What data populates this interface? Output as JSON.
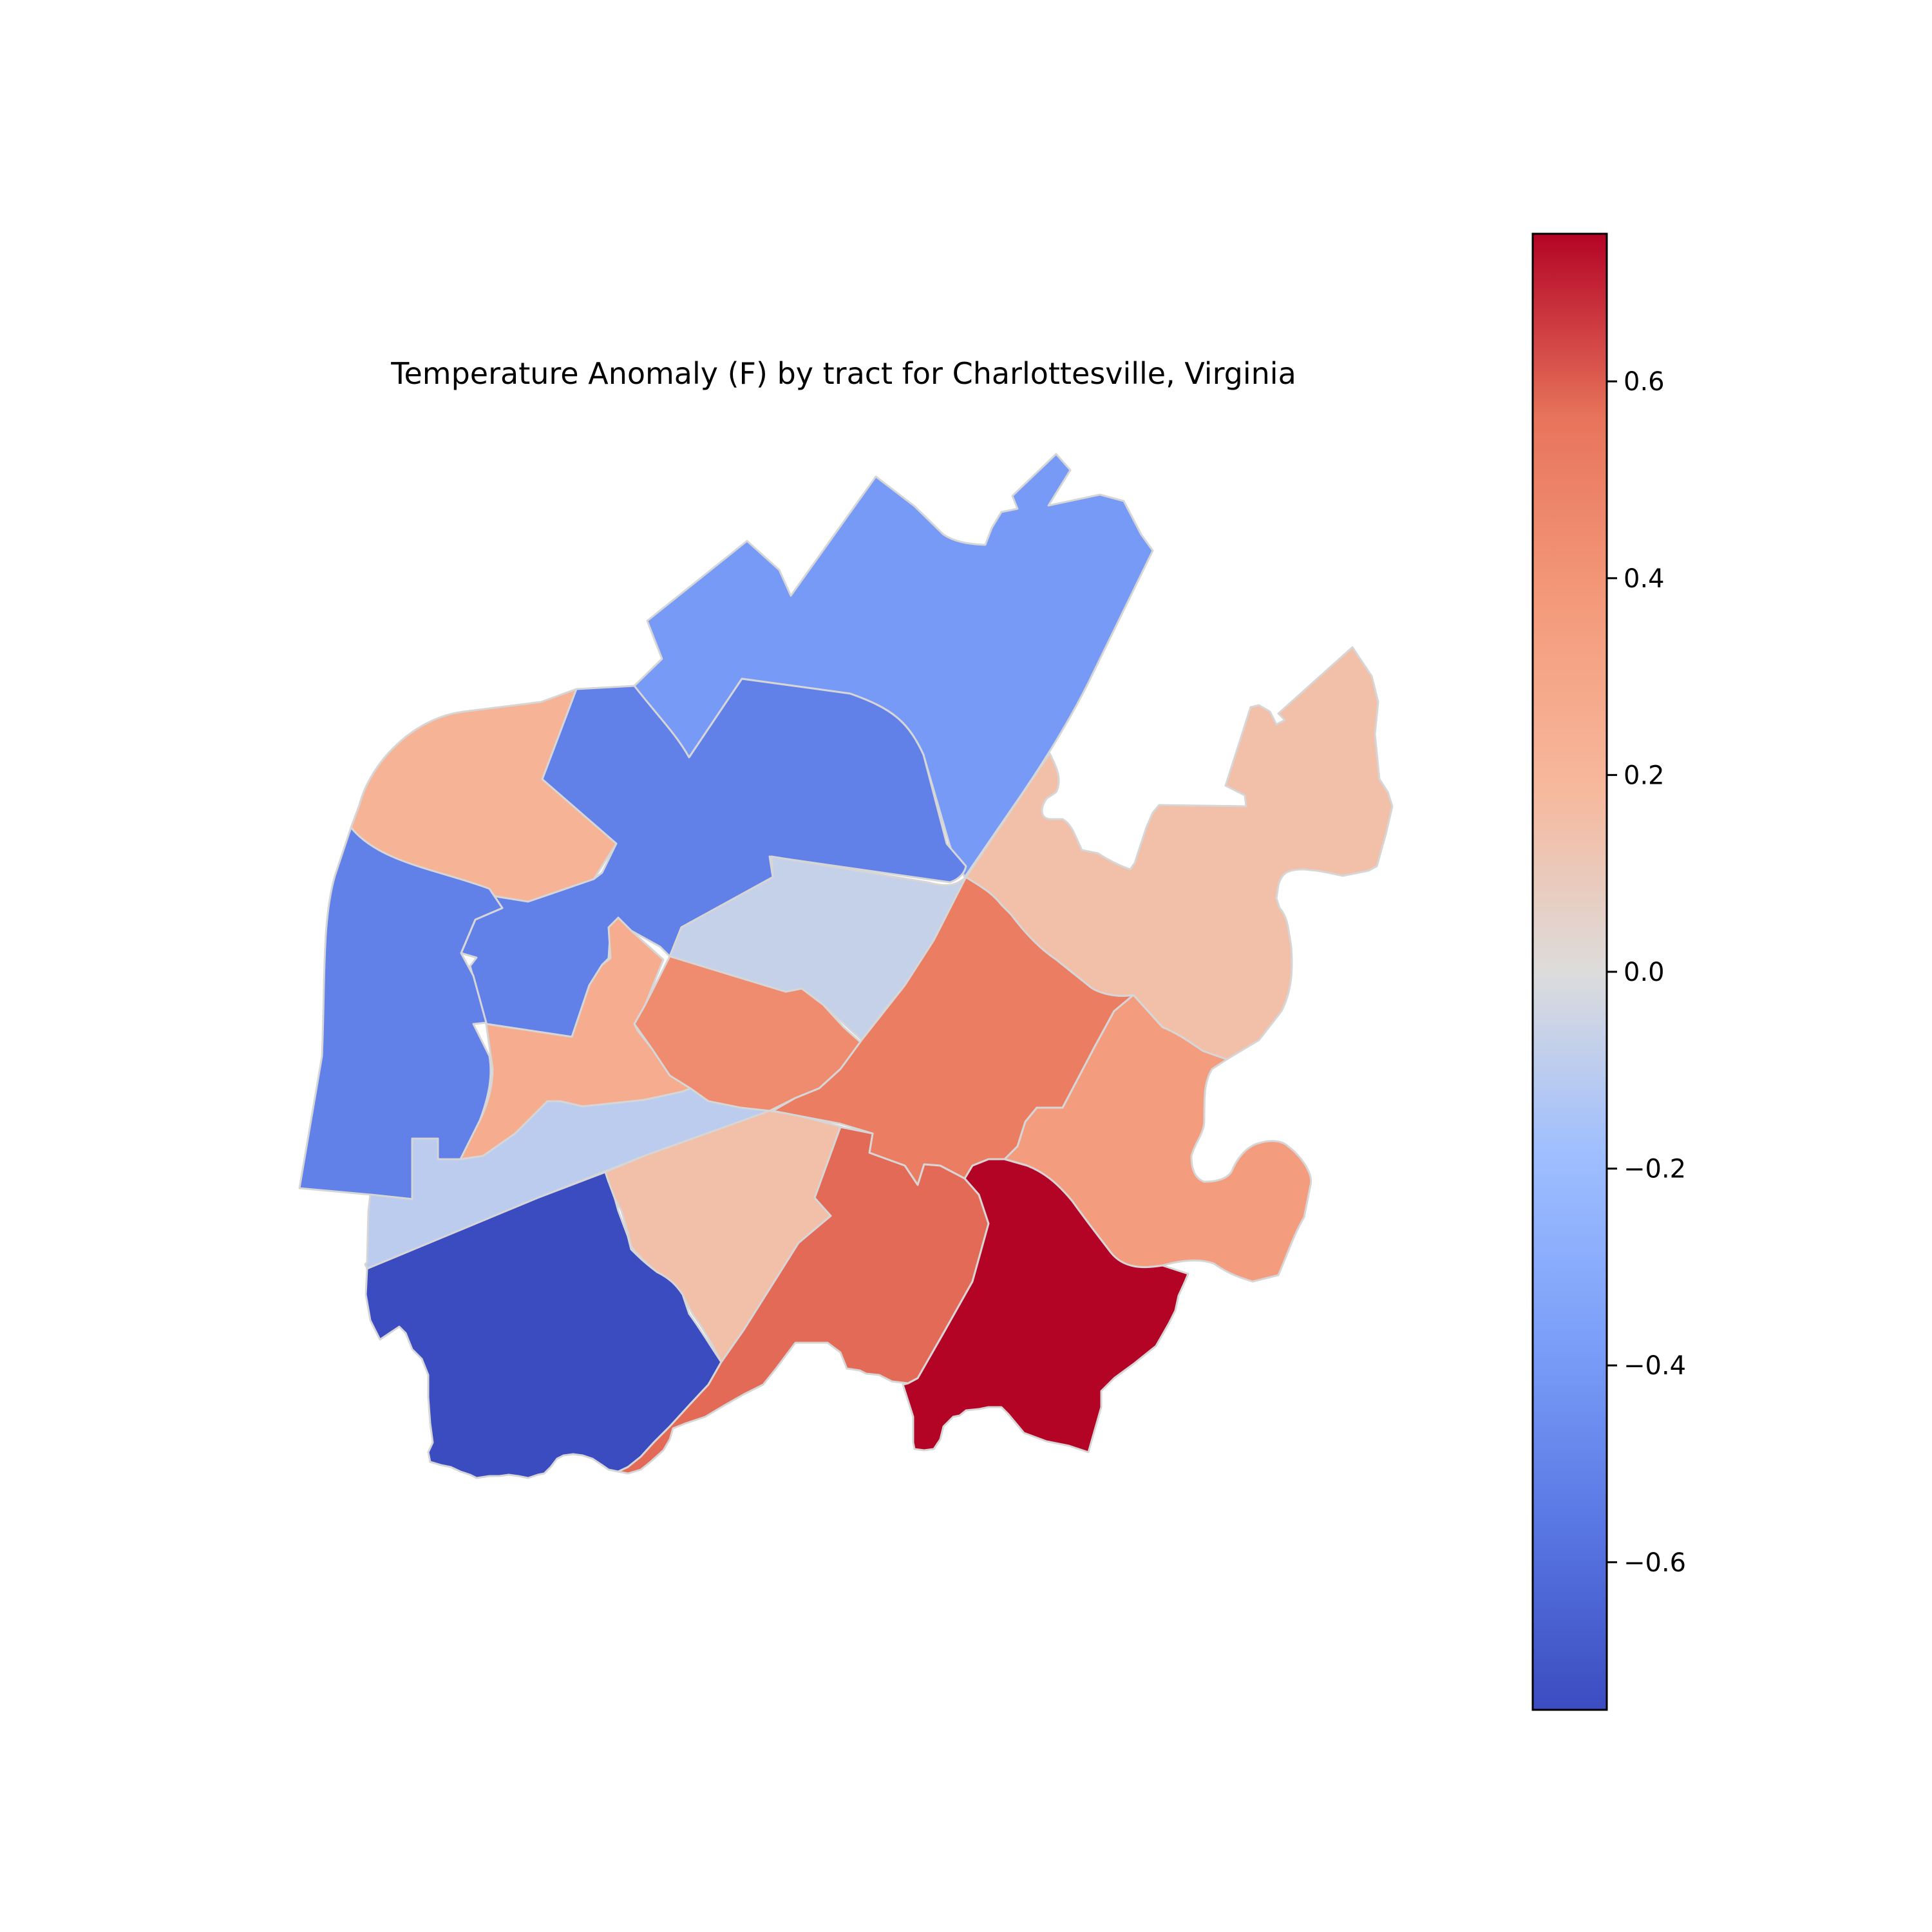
{
  "title": "Temperature Anomaly (F) by tract for Charlottesville, Virginia",
  "colormap": "coolwarm",
  "value_range": [
    -0.75,
    0.75
  ],
  "colorbar": {
    "ticks": [
      -0.6,
      -0.4,
      -0.2,
      0.0,
      0.2,
      0.4,
      0.6
    ],
    "tick_labels": [
      "−0.6",
      "−0.4",
      "−0.2",
      "0.0",
      "0.2",
      "0.4",
      "0.6"
    ]
  },
  "tracts": [
    {
      "id": "north",
      "value": -0.4
    },
    {
      "id": "north-central",
      "value": -0.52
    },
    {
      "id": "northwest",
      "value": 0.22
    },
    {
      "id": "west",
      "value": -0.52
    },
    {
      "id": "central-north-gray",
      "value": -0.07
    },
    {
      "id": "central-west-orange",
      "value": 0.26
    },
    {
      "id": "central-red",
      "value": 0.45
    },
    {
      "id": "east-central",
      "value": 0.52
    },
    {
      "id": "northeast",
      "value": 0.15
    },
    {
      "id": "east",
      "value": 0.36
    },
    {
      "id": "south-gray",
      "value": -0.1
    },
    {
      "id": "southwest",
      "value": -0.75
    },
    {
      "id": "south-central",
      "value": 0.15
    },
    {
      "id": "south-red",
      "value": 0.58
    },
    {
      "id": "southeast",
      "value": 0.75
    }
  ]
}
